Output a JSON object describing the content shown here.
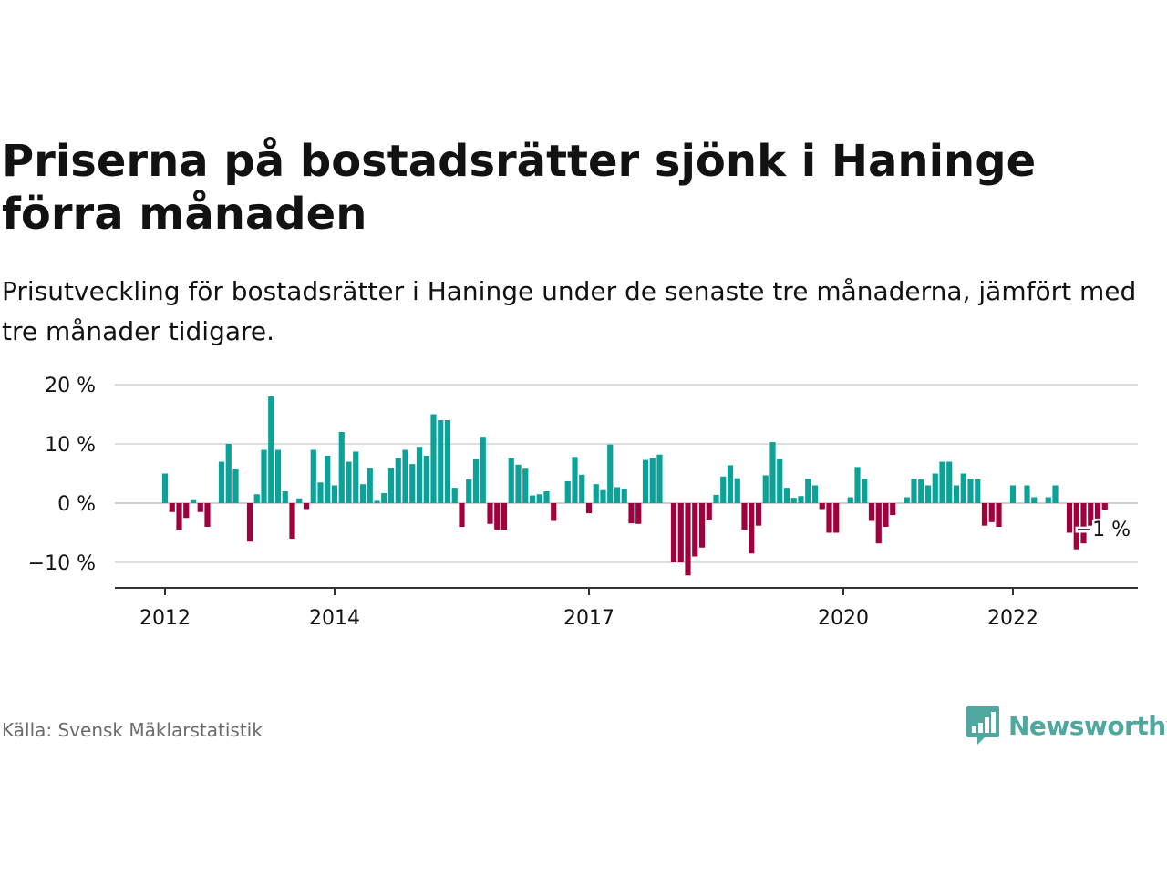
{
  "title": "Priserna på bostadsrätter sjönk i Haninge förra månaden",
  "subtitle": "Prisutveckling för bostadsrätter i Haninge under de senaste tre månaderna, jämfört med tre månader tidigare.",
  "source": "Källa: Svensk Mäklarstatistik",
  "logo": {
    "text": "Newsworthy",
    "icon": "bar-chart-speech-bubble-icon"
  },
  "colors": {
    "positive": "#0aa39a",
    "negative": "#a0003c",
    "grid": "#dddddd",
    "axis": "#333333",
    "text": "#121212",
    "logo": "#4fa8a0"
  },
  "chart_data": {
    "type": "bar",
    "title": "Priserna på bostadsrätter sjönk i Haninge förra månaden",
    "xlabel": "",
    "ylabel": "",
    "ylim": [
      -14,
      20
    ],
    "yticks": [
      20,
      10,
      0,
      -10
    ],
    "ytick_labels": [
      "20 %",
      "10 %",
      "0 %",
      "−10 %"
    ],
    "xticks": [
      "2012",
      "2014",
      "2017",
      "2020",
      "2022"
    ],
    "grid": true,
    "legend": "none",
    "start": "2012-01",
    "end": "2023-02",
    "values": [
      5,
      -1.5,
      -4.5,
      -2.5,
      0.5,
      -1.5,
      -4,
      0,
      7,
      10,
      5.7,
      0,
      -6.5,
      1.5,
      9,
      18,
      9,
      2,
      -6,
      0.8,
      -1,
      9,
      3.5,
      8,
      3,
      12,
      7,
      8.7,
      3.2,
      5.9,
      0.4,
      1.7,
      5.9,
      7.6,
      9,
      6.6,
      9.5,
      8,
      15,
      14,
      14,
      2.6,
      -4,
      4,
      7.4,
      11.2,
      -3.5,
      -4.5,
      -4.5,
      7.6,
      6.5,
      5.8,
      1.3,
      1.5,
      2,
      -3,
      0,
      3.7,
      7.8,
      4.8,
      -1.7,
      3.2,
      2.2,
      9.9,
      2.7,
      2.4,
      -3.4,
      -3.5,
      7.3,
      7.6,
      8.2,
      0,
      -10,
      -10,
      -12.2,
      -9,
      -7.5,
      -2.8,
      1.4,
      4.5,
      6.4,
      4.2,
      -4.5,
      -8.5,
      -3.8,
      4.7,
      10.3,
      7.4,
      2.6,
      0.9,
      1.2,
      4.1,
      3,
      -1,
      -5,
      -5,
      0,
      1,
      6.1,
      4.1,
      -3,
      -6.8,
      -4,
      -2,
      0,
      1,
      4.1,
      4,
      3,
      5,
      7,
      7,
      3,
      5,
      4.1,
      4,
      -3.8,
      -3.2,
      -4,
      0,
      3,
      0,
      3,
      1,
      0,
      1,
      3,
      0,
      -5,
      -7.8,
      -6.8,
      -3.8,
      -2.6,
      -1.1
    ],
    "annotation": "−1 %"
  }
}
